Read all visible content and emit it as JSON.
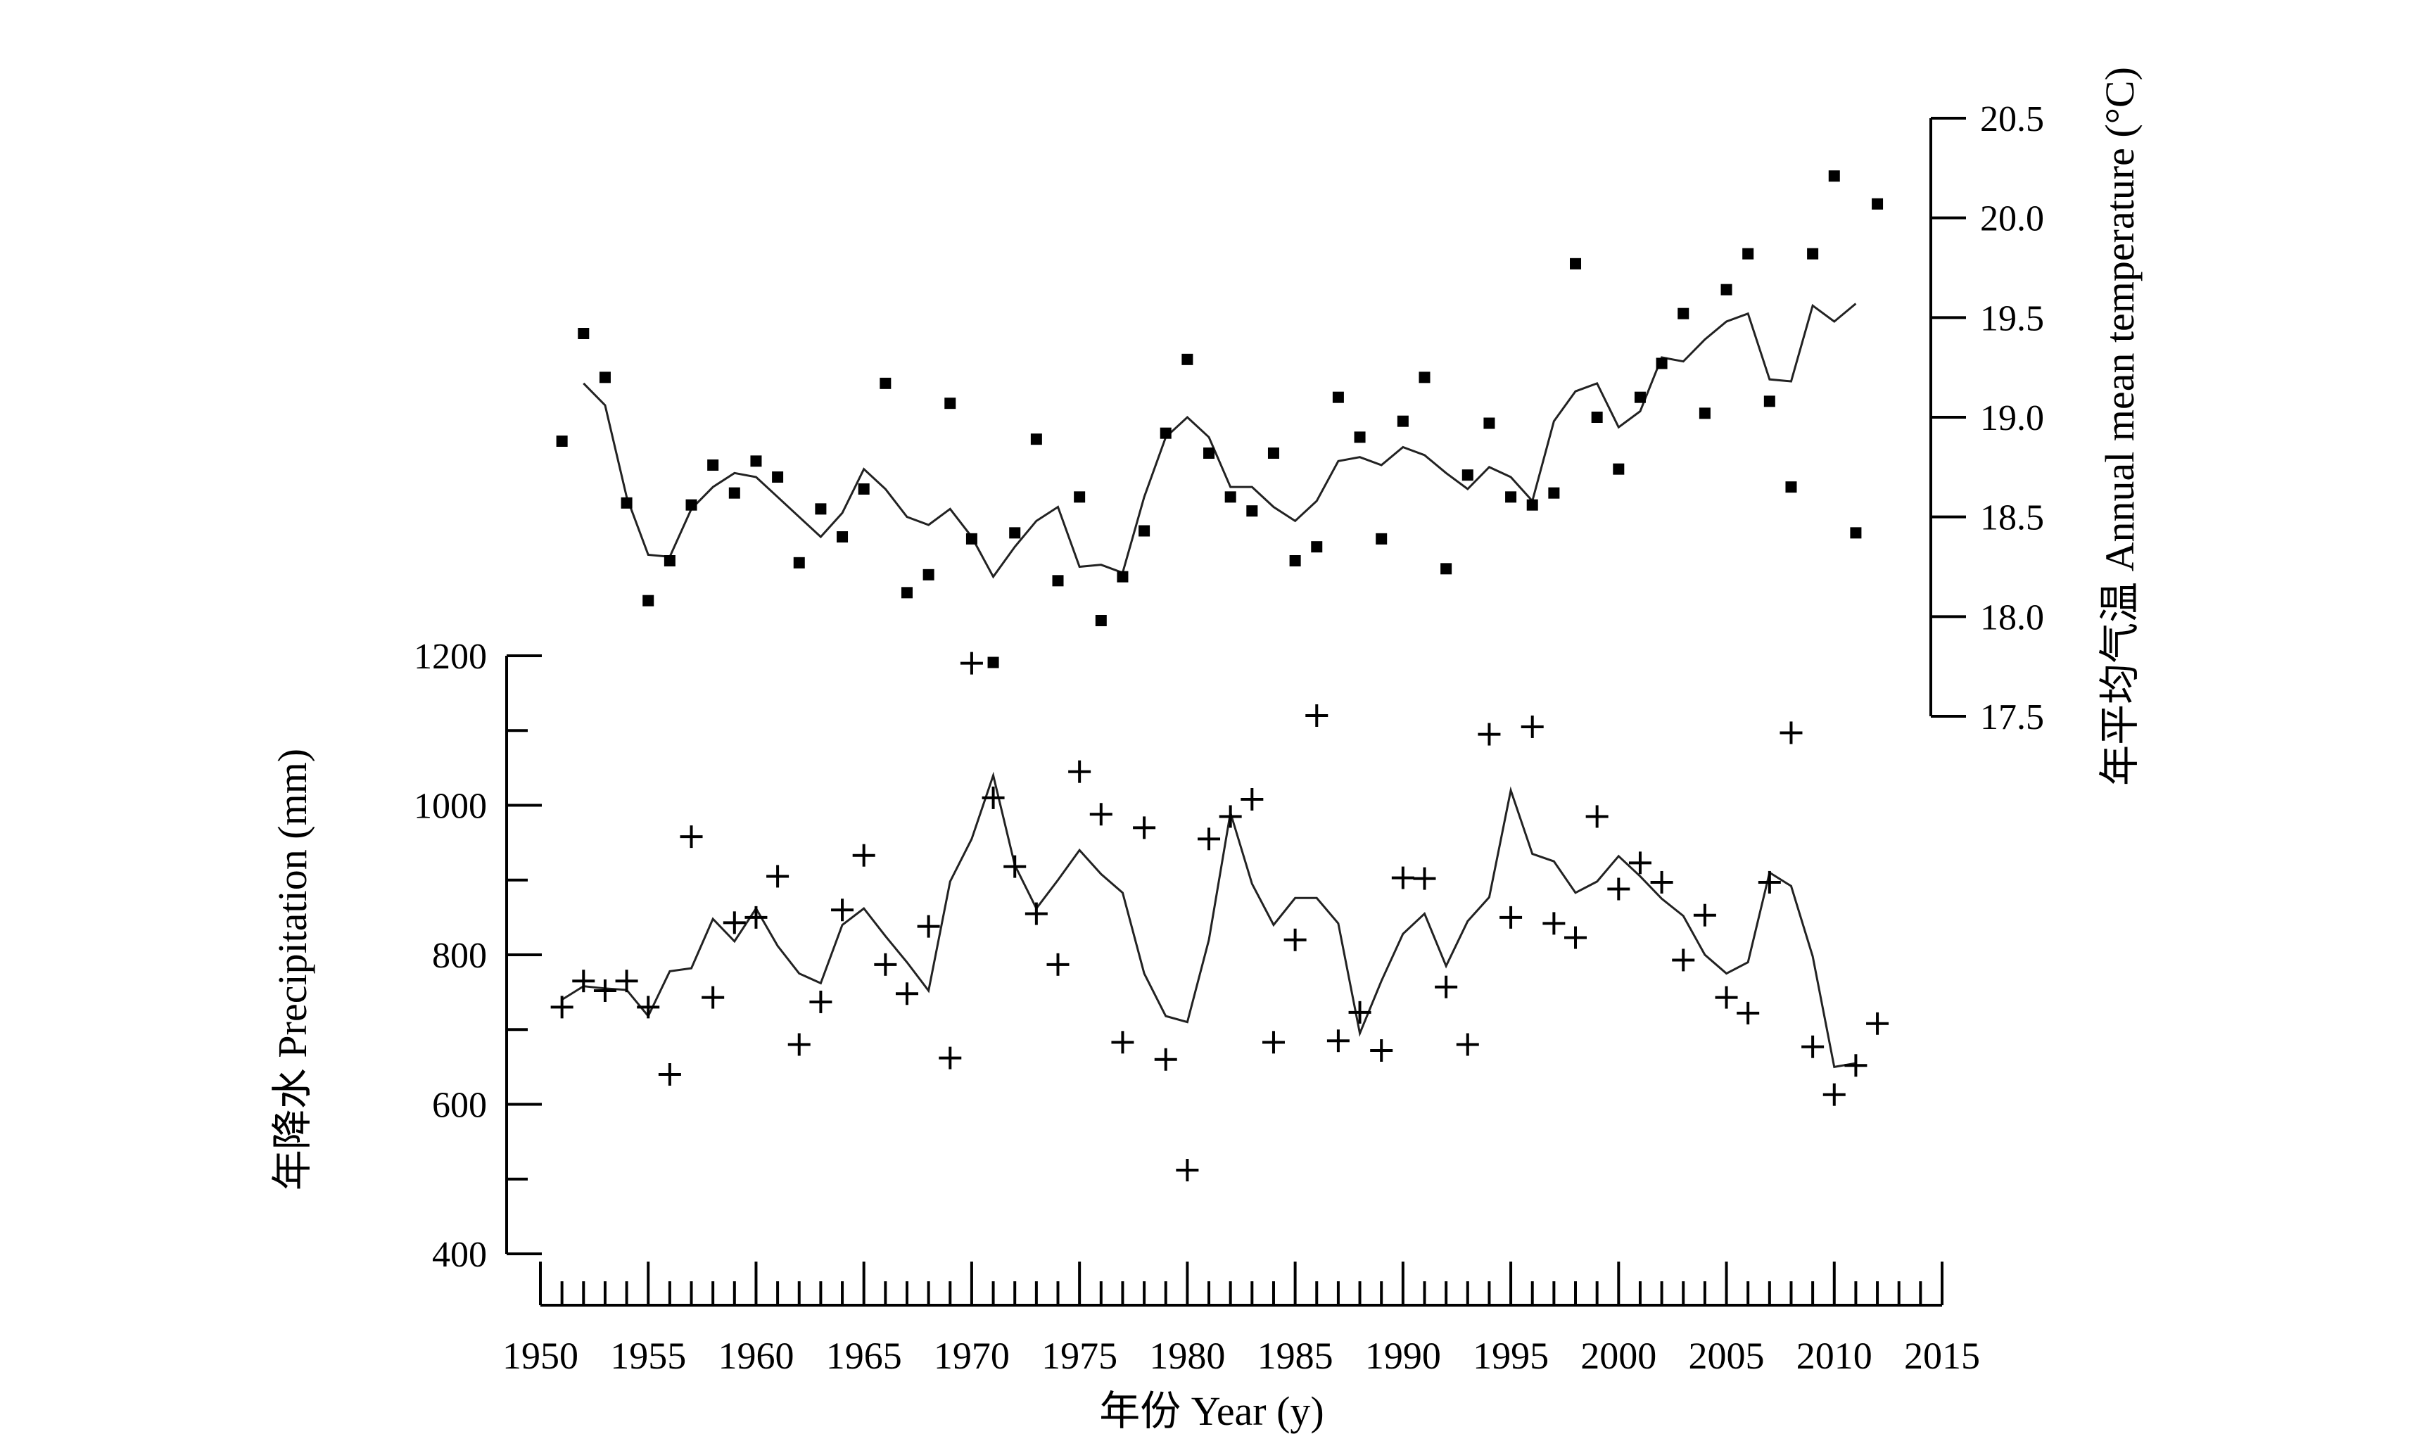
{
  "chart_data": [
    {
      "type": "scatter",
      "ylabel": "年平均气温 Annual mean temperature (°C)",
      "ylim": [
        17.5,
        20.5
      ],
      "yticks": [
        17.5,
        18.0,
        18.5,
        19.0,
        19.5,
        20.0,
        20.5
      ],
      "ytick_labels": [
        "17.5",
        "18.0",
        "18.5",
        "19.0",
        "19.5",
        "20.0",
        "20.5"
      ],
      "axis_side": "right",
      "marker": "square",
      "series": [
        {
          "type": "scatter",
          "x": [
            1951,
            1952,
            1953,
            1954,
            1955,
            1956,
            1957,
            1958,
            1959,
            1960,
            1961,
            1962,
            1963,
            1964,
            1965,
            1966,
            1967,
            1968,
            1969,
            1970,
            1971,
            1972,
            1973,
            1974,
            1975,
            1976,
            1977,
            1978,
            1979,
            1980,
            1981,
            1982,
            1983,
            1984,
            1985,
            1986,
            1987,
            1988,
            1989,
            1990,
            1991,
            1992,
            1993,
            1994,
            1995,
            1996,
            1997,
            1998,
            1999,
            2000,
            2001,
            2002,
            2003,
            2004,
            2005,
            2006,
            2007,
            2008,
            2009,
            2010,
            2011,
            2012
          ],
          "y": [
            18.88,
            19.42,
            19.2,
            18.57,
            18.08,
            18.28,
            18.56,
            18.76,
            18.62,
            18.78,
            18.7,
            18.27,
            18.54,
            18.4,
            18.64,
            19.17,
            18.12,
            18.21,
            19.07,
            18.39,
            17.77,
            18.42,
            18.89,
            18.18,
            18.6,
            17.98,
            18.2,
            18.43,
            18.92,
            19.29,
            18.82,
            18.6,
            18.53,
            18.82,
            18.28,
            18.35,
            19.1,
            18.9,
            18.39,
            18.98,
            19.2,
            18.24,
            18.71,
            18.97,
            18.6,
            18.56,
            18.62,
            19.77,
            19.0,
            18.74,
            19.1,
            19.27,
            19.52,
            19.02,
            19.64,
            19.82,
            19.08,
            18.65,
            19.82,
            20.21,
            18.42,
            20.07
          ]
        },
        {
          "type": "line",
          "x": [
            1952,
            1953,
            1954,
            1955,
            1956,
            1957,
            1958,
            1959,
            1960,
            1961,
            1962,
            1963,
            1964,
            1965,
            1966,
            1967,
            1968,
            1969,
            1970,
            1971,
            1972,
            1973,
            1974,
            1975,
            1976,
            1977,
            1978,
            1979,
            1980,
            1981,
            1982,
            1983,
            1984,
            1985,
            1986,
            1987,
            1988,
            1989,
            1990,
            1991,
            1992,
            1993,
            1994,
            1995,
            1996,
            1997,
            1998,
            1999,
            2000,
            2001,
            2002,
            2003,
            2004,
            2005,
            2006,
            2007,
            2008,
            2009,
            2010,
            2011
          ],
          "y": [
            19.17,
            19.06,
            18.6,
            18.31,
            18.3,
            18.54,
            18.65,
            18.72,
            18.7,
            18.6,
            18.5,
            18.4,
            18.52,
            18.74,
            18.64,
            18.5,
            18.46,
            18.54,
            18.4,
            18.2,
            18.35,
            18.48,
            18.55,
            18.25,
            18.26,
            18.22,
            18.6,
            18.9,
            19.0,
            18.9,
            18.65,
            18.65,
            18.55,
            18.48,
            18.58,
            18.78,
            18.8,
            18.76,
            18.85,
            18.81,
            18.72,
            18.64,
            18.75,
            18.7,
            18.58,
            18.98,
            19.13,
            19.17,
            18.95,
            19.03,
            19.3,
            19.28,
            19.39,
            19.48,
            19.52,
            19.19,
            19.18,
            19.56,
            19.48,
            19.57
          ]
        }
      ]
    },
    {
      "type": "scatter",
      "xlabel": "年份 Year (y)",
      "ylabel": "年降水 Precipitation (mm)",
      "xlim": [
        1950,
        2015
      ],
      "ylim": [
        400,
        1200
      ],
      "xticks": [
        1950,
        1955,
        1960,
        1965,
        1970,
        1975,
        1980,
        1985,
        1990,
        1995,
        2000,
        2005,
        2010,
        2015
      ],
      "xtick_labels": [
        "1950",
        "1955",
        "1960",
        "1965",
        "1970",
        "1975",
        "1980",
        "1985",
        "1990",
        "1995",
        "2000",
        "2005",
        "2010",
        "2015"
      ],
      "yticks": [
        400,
        600,
        800,
        1000,
        1200
      ],
      "ytick_labels": [
        "400",
        "600",
        "800",
        "1000",
        "1200"
      ],
      "axis_side": "left",
      "marker": "plus",
      "series": [
        {
          "type": "scatter",
          "x": [
            1951,
            1952,
            1953,
            1954,
            1955,
            1956,
            1957,
            1958,
            1959,
            1960,
            1961,
            1962,
            1963,
            1964,
            1965,
            1966,
            1967,
            1968,
            1969,
            1970,
            1971,
            1972,
            1973,
            1974,
            1975,
            1976,
            1977,
            1978,
            1979,
            1980,
            1981,
            1982,
            1983,
            1984,
            1985,
            1986,
            1987,
            1988,
            1989,
            1990,
            1991,
            1992,
            1993,
            1994,
            1995,
            1996,
            1997,
            1998,
            1999,
            2000,
            2001,
            2002,
            2003,
            2004,
            2005,
            2006,
            2007,
            2008,
            2009,
            2010,
            2011,
            2012
          ],
          "y": [
            730,
            765,
            752,
            765,
            730,
            640,
            958,
            743,
            843,
            850,
            905,
            680,
            737,
            860,
            933,
            787,
            748,
            838,
            662,
            1190,
            1010,
            918,
            855,
            787,
            1045,
            988,
            683,
            970,
            660,
            512,
            955,
            985,
            1008,
            683,
            820,
            1120,
            685,
            723,
            672,
            903,
            902,
            757,
            680,
            1095,
            850,
            1105,
            842,
            823,
            985,
            888,
            923,
            897,
            793,
            853,
            743,
            722,
            897,
            1097,
            677,
            613,
            652,
            708
          ]
        },
        {
          "type": "line",
          "x": [
            1951,
            1952,
            1953,
            1954,
            1955,
            1956,
            1957,
            1958,
            1959,
            1960,
            1961,
            1962,
            1963,
            1964,
            1965,
            1966,
            1967,
            1968,
            1969,
            1970,
            1971,
            1972,
            1973,
            1974,
            1975,
            1976,
            1977,
            1978,
            1979,
            1980,
            1981,
            1982,
            1983,
            1984,
            1985,
            1986,
            1987,
            1988,
            1989,
            1990,
            1991,
            1992,
            1993,
            1994,
            1995,
            1996,
            1997,
            1998,
            1999,
            2000,
            2001,
            2002,
            2003,
            2004,
            2005,
            2006,
            2007,
            2008,
            2009,
            2010,
            2011
          ],
          "y": [
            740,
            758,
            755,
            753,
            718,
            778,
            782,
            848,
            818,
            862,
            812,
            775,
            762,
            840,
            862,
            825,
            790,
            752,
            898,
            955,
            1040,
            920,
            862,
            900,
            940,
            908,
            883,
            775,
            718,
            710,
            820,
            990,
            895,
            840,
            876,
            876,
            842,
            695,
            765,
            828,
            855,
            785,
            845,
            877,
            1020,
            935,
            925,
            883,
            898,
            932,
            905,
            875,
            852,
            800,
            775,
            790,
            910,
            892,
            798,
            650,
            655
          ]
        }
      ]
    }
  ]
}
